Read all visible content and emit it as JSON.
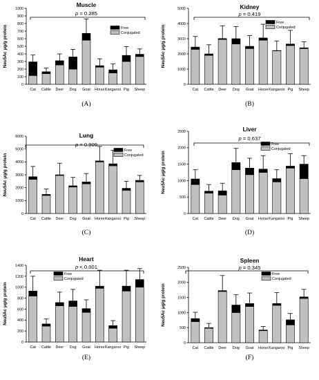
{
  "chart_data": [
    {
      "type": "bar",
      "stacked": true,
      "panel": "(A)",
      "title": "Muscle",
      "p_text": "p = 0.285",
      "ylabel": "Neu5Ac μg/g protein",
      "ylim": [
        0,
        1000
      ],
      "yticks": [
        0,
        100,
        200,
        300,
        400,
        500,
        600,
        700,
        800,
        900,
        1000
      ],
      "categories": [
        "Cat",
        "Cattle",
        "Deer",
        "Dog",
        "Goat",
        "Horse",
        "Kangaroo",
        "Pig",
        "Sheep"
      ],
      "series": [
        {
          "name": "Conjugated",
          "color": "#c0c0c0",
          "values": [
            115,
            140,
            255,
            200,
            580,
            225,
            150,
            300,
            365
          ]
        },
        {
          "name": "Free",
          "color": "#000000",
          "values": [
            180,
            25,
            55,
            160,
            90,
            20,
            40,
            80,
            30
          ]
        }
      ],
      "error_tops": [
        385,
        215,
        400,
        460,
        860,
        335,
        270,
        495,
        465
      ],
      "legend": "top-right"
    },
    {
      "type": "bar",
      "stacked": true,
      "panel": "(B)",
      "title": "Kidney",
      "p_text": "p = 0.419",
      "ylabel": "Neu5Ac μg/g protein",
      "ylim": [
        0,
        5000
      ],
      "yticks": [
        0,
        1000,
        2000,
        3000,
        4000,
        5000
      ],
      "categories": [
        "Cat",
        "Cattle",
        "Deer",
        "Dog",
        "Goat",
        "Horse",
        "Kangaroo",
        "Pig",
        "Sheep"
      ],
      "series": [
        {
          "name": "Conjugated",
          "color": "#c0c0c0",
          "values": [
            2300,
            1900,
            2950,
            2650,
            2350,
            2900,
            2200,
            2550,
            2350
          ]
        },
        {
          "name": "Free",
          "color": "#000000",
          "values": [
            150,
            100,
            60,
            350,
            150,
            150,
            20,
            100,
            50
          ]
        }
      ],
      "error_tops": [
        3150,
        2600,
        3850,
        3800,
        3200,
        3950,
        2850,
        3550,
        2800
      ],
      "legend": "top-right"
    },
    {
      "type": "bar",
      "stacked": true,
      "panel": "(C)",
      "title": "Lung",
      "p_text": "p = 0.909",
      "ylabel": "Neu5Ac μg/g protein",
      "ylim": [
        0,
        6000
      ],
      "yticks": [
        0,
        1000,
        2000,
        3000,
        4000,
        5000,
        6000
      ],
      "categories": [
        "Cat",
        "Cattle",
        "Deer",
        "Dog",
        "Goat",
        "Horse",
        "Kangaroo",
        "Pig",
        "Sheep"
      ],
      "series": [
        {
          "name": "Conjugated",
          "color": "#c0c0c0",
          "values": [
            2650,
            1400,
            2950,
            2050,
            2300,
            4000,
            3700,
            1800,
            2450
          ]
        },
        {
          "name": "Free",
          "color": "#000000",
          "values": [
            200,
            80,
            50,
            100,
            150,
            80,
            150,
            150,
            120
          ]
        }
      ],
      "error_tops": [
        3650,
        1900,
        3900,
        2800,
        3100,
        5200,
        4900,
        2500,
        2950
      ],
      "legend": "top-right"
    },
    {
      "type": "bar",
      "stacked": true,
      "panel": "(D)",
      "title": "Liver",
      "p_text": "p = 0.637",
      "ylabel": "Neu5Ac μg/g protein",
      "ylim": [
        0,
        2500
      ],
      "yticks": [
        0,
        500,
        1000,
        1500,
        2000,
        2500
      ],
      "categories": [
        "Cat",
        "Cattle",
        "Deer",
        "Dog",
        "Goat",
        "Horse",
        "Kangaroo",
        "Pig",
        "Sheep"
      ],
      "series": [
        {
          "name": "Conjugated",
          "color": "#c0c0c0",
          "values": [
            880,
            620,
            560,
            1330,
            1180,
            1250,
            960,
            1380,
            1060
          ]
        },
        {
          "name": "Free",
          "color": "#000000",
          "values": [
            170,
            60,
            130,
            220,
            200,
            100,
            100,
            60,
            440
          ]
        }
      ],
      "error_tops": [
        1330,
        880,
        920,
        1980,
        1680,
        1760,
        1330,
        1820,
        1760
      ],
      "legend": "top-right"
    },
    {
      "type": "bar",
      "stacked": true,
      "panel": "(E)",
      "title": "Heart",
      "p_text": "p < 0.001",
      "ylabel": "Neu5Ac μg/g protein",
      "ylim": [
        0,
        1400
      ],
      "yticks": [
        0,
        200,
        400,
        600,
        800,
        1000,
        1200,
        1400
      ],
      "categories": [
        "Cat",
        "Cattle",
        "Deer",
        "Dog",
        "Goat",
        "Horse",
        "Kangaroo",
        "Pig",
        "Sheep"
      ],
      "series": [
        {
          "name": "Conjugated",
          "color": "#c0c0c0",
          "values": [
            840,
            290,
            660,
            650,
            540,
            980,
            250,
            930,
            1000
          ]
        },
        {
          "name": "Free",
          "color": "#000000",
          "values": [
            90,
            40,
            60,
            100,
            70,
            40,
            50,
            90,
            140
          ]
        }
      ],
      "error_tops": [
        1200,
        420,
        910,
        960,
        770,
        1310,
        390,
        1310,
        1340
      ],
      "legend": "top-center"
    },
    {
      "type": "bar",
      "stacked": true,
      "panel": "(F)",
      "title": "Spleen",
      "p_text": "p = 0.345",
      "ylabel": "Neu5Ac μg/g protein",
      "ylim": [
        0,
        2500
      ],
      "yticks": [
        0,
        500,
        1000,
        1500,
        2000,
        2500
      ],
      "categories": [
        "Cat",
        "Cattle",
        "Deer",
        "Dog",
        "Goat",
        "Horse",
        "Kangaroo",
        "Pig",
        "Sheep"
      ],
      "series": [
        {
          "name": "Conjugated",
          "color": "#c0c0c0",
          "values": [
            700,
            480,
            1700,
            1000,
            1200,
            400,
            1240,
            590,
            1470
          ]
        },
        {
          "name": "Free",
          "color": "#000000",
          "values": [
            100,
            20,
            30,
            250,
            100,
            20,
            60,
            170,
            50
          ]
        }
      ],
      "error_tops": [
        1010,
        640,
        2230,
        1590,
        1650,
        540,
        1660,
        970,
        1770
      ],
      "legend": "top-right"
    }
  ]
}
